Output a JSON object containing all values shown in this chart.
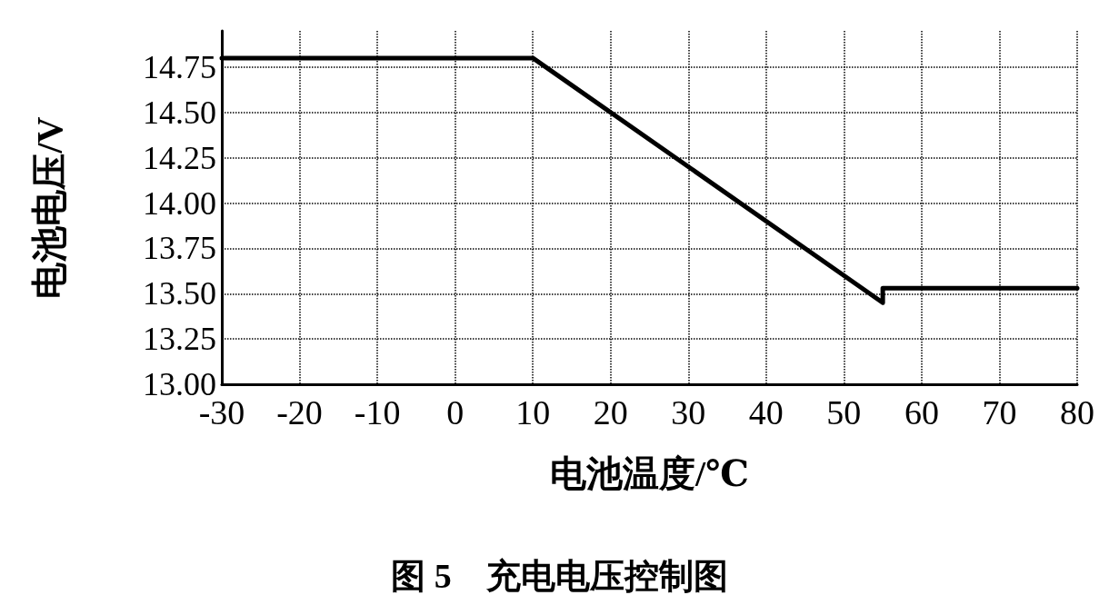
{
  "chart_data": {
    "type": "line",
    "title": "图 5　充电电压控制图",
    "xlabel": "电池温度/℃",
    "ylabel": "电池电压/V",
    "x": [
      -30,
      10,
      55,
      55,
      80
    ],
    "series": [
      {
        "color": "#000000",
        "values": [
          14.8,
          14.8,
          13.45,
          13.53,
          13.53
        ]
      }
    ],
    "xlim": [
      -30,
      80
    ],
    "xticks": [
      -30,
      -20,
      -10,
      0,
      10,
      20,
      30,
      40,
      50,
      60,
      70,
      80
    ],
    "ylim": [
      13,
      14.95
    ],
    "yticks": [
      {
        "value": 13,
        "label": "13.00"
      },
      13.25,
      {
        "value": 13.5,
        "label": "13.50"
      },
      13.75,
      {
        "value": 14,
        "label": "14.00"
      },
      14.25,
      {
        "value": 14.5,
        "label": "14.50"
      },
      14.75
    ],
    "grid": true,
    "marker": "none",
    "line_style": "solid"
  }
}
